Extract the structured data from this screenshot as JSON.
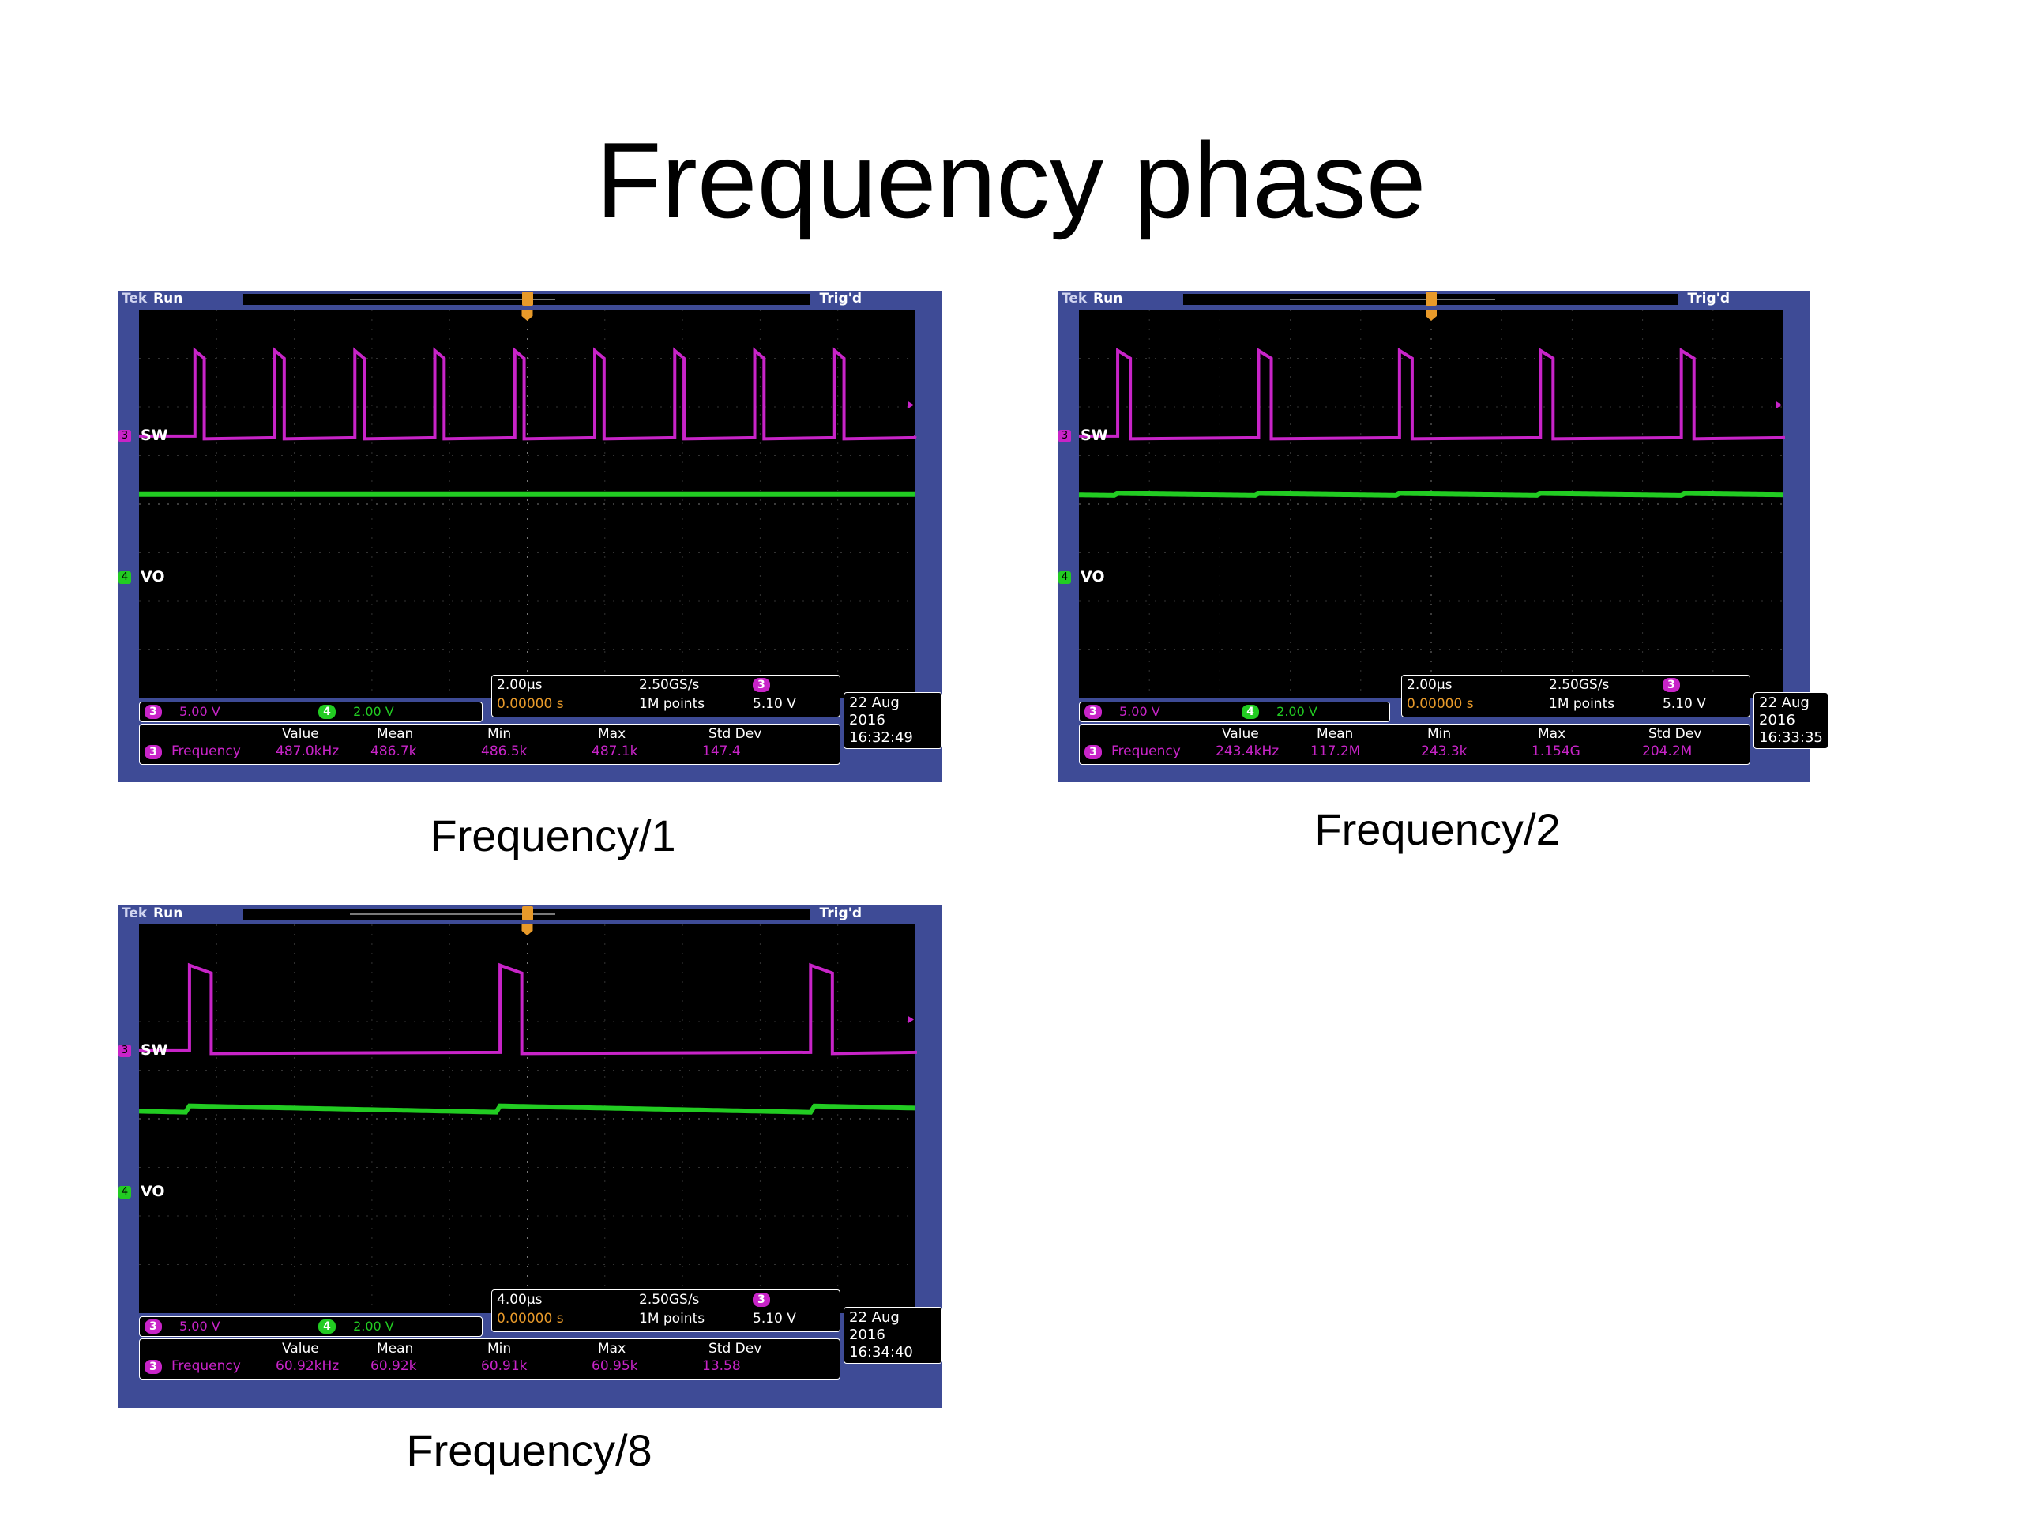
{
  "title": "Frequency phase",
  "panels": [
    {
      "caption": "Frequency/1",
      "run_label": "Run",
      "tek_label": "Tek",
      "trig_label": "Trig'd",
      "ch3_label": "SW",
      "ch4_label": "VO",
      "ch3_num": "3",
      "ch4_num": "4",
      "ch3_scale": "5.00 V",
      "ch4_scale": "2.00 V",
      "timebase": "2.00µs",
      "sample_rate": "2.50GS/s",
      "trigger_pos": "0.00000 s",
      "record_length": "1M points",
      "trigger_level": "5.10 V",
      "date": "22 Aug 2016",
      "time": "16:32:49",
      "meas_headers": [
        "Value",
        "Mean",
        "Min",
        "Max",
        "Std Dev"
      ],
      "meas_label": "Frequency",
      "meas_values": [
        "487.0kHz",
        "486.7k",
        "486.5k",
        "487.1k",
        "147.4"
      ],
      "pulse_count": 9,
      "ripple": 0
    },
    {
      "caption": "Frequency/2",
      "run_label": "Run",
      "tek_label": "Tek",
      "trig_label": "Trig'd",
      "ch3_label": "SW",
      "ch4_label": "VO",
      "ch3_num": "3",
      "ch4_num": "4",
      "ch3_scale": "5.00 V",
      "ch4_scale": "2.00 V",
      "timebase": "2.00µs",
      "sample_rate": "2.50GS/s",
      "trigger_pos": "0.00000 s",
      "record_length": "1M points",
      "trigger_level": "5.10 V",
      "date": "22 Aug 2016",
      "time": "16:33:35",
      "meas_headers": [
        "Value",
        "Mean",
        "Min",
        "Max",
        "Std Dev"
      ],
      "meas_label": "Frequency",
      "meas_values": [
        "243.4kHz",
        "117.2M",
        "243.3k",
        "1.154G",
        "204.2M"
      ],
      "pulse_count": 5,
      "ripple": 0.3
    },
    {
      "caption": "Frequency/8",
      "run_label": "Run",
      "tek_label": "Tek",
      "trig_label": "Trig'd",
      "ch3_label": "SW",
      "ch4_label": "VO",
      "ch3_num": "3",
      "ch4_num": "4",
      "ch3_scale": "5.00 V",
      "ch4_scale": "2.00 V",
      "timebase": "4.00µs",
      "sample_rate": "2.50GS/s",
      "trigger_pos": "0.00000 s",
      "record_length": "1M points",
      "trigger_level": "5.10 V",
      "date": "22 Aug 2016",
      "time": "16:34:40",
      "meas_headers": [
        "Value",
        "Mean",
        "Min",
        "Max",
        "Std Dev"
      ],
      "meas_label": "Frequency",
      "meas_values": [
        "60.92kHz",
        "60.92k",
        "60.91k",
        "60.95k",
        "13.58"
      ],
      "pulse_count": 3,
      "ripple": 1
    }
  ],
  "colors": {
    "frame": "#3e4b96",
    "ch3": "#c824c8",
    "ch4": "#22cc22",
    "trigger": "#e89a2a"
  }
}
